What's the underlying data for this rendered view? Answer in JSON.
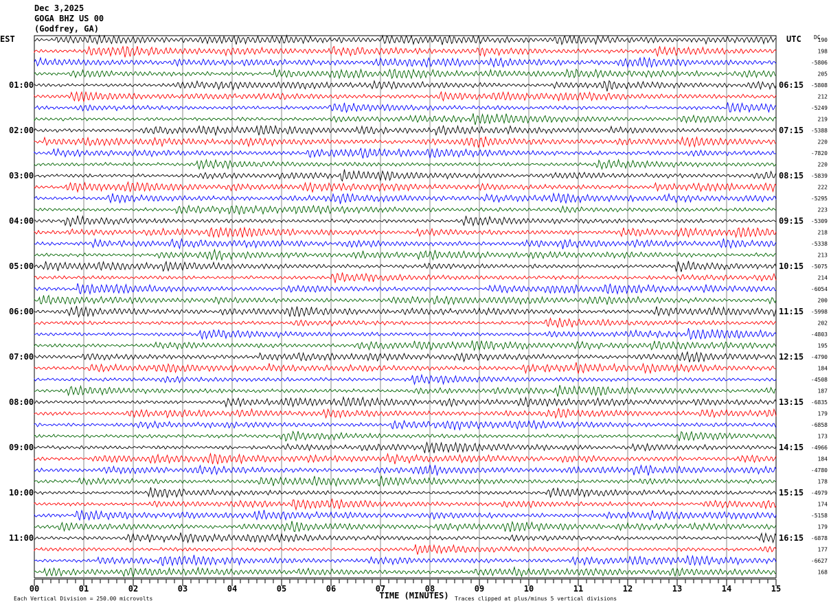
{
  "header": {
    "date": "Dec 3,2025",
    "station": "GOGA BHZ US 00",
    "location": "(Godfrey, GA)"
  },
  "chart_data": {
    "type": "helicorder",
    "left_timezone": "EST",
    "right_timezone": "UTC",
    "dc_header": "DC",
    "xlabel": "TIME (MINUTES)",
    "xlim": [
      0,
      15
    ],
    "x_ticks": [
      "00",
      "01",
      "02",
      "03",
      "04",
      "05",
      "06",
      "07",
      "08",
      "09",
      "10",
      "11",
      "12",
      "13",
      "14",
      "15"
    ],
    "trace_colors": [
      "#000000",
      "#ff0000",
      "#0000ff",
      "#006400"
    ],
    "traces_per_hour": 4,
    "trace_count": 48,
    "left_hour_labels": [
      "01:00",
      "02:00",
      "03:00",
      "04:00",
      "05:00",
      "06:00",
      "07:00",
      "08:00",
      "09:00",
      "10:00",
      "11:00"
    ],
    "right_hour_labels": [
      "06:15",
      "07:15",
      "08:15",
      "09:15",
      "10:15",
      "11:15",
      "12:15",
      "13:15",
      "14:15",
      "15:15",
      "16:15"
    ],
    "dc_offsets": [
      "190",
      "198",
      "-5806",
      "205",
      "-5808",
      "212",
      "-5249",
      "219",
      "-5388",
      "220",
      "-7820",
      "220",
      "-5839",
      "222",
      "-5295",
      "223",
      "-5309",
      "218",
      "-5338",
      "213",
      "-5075",
      "214",
      "-6054",
      "200",
      "-5998",
      "202",
      "-4803",
      "195",
      "-4790",
      "184",
      "-4508",
      "187",
      "-6835",
      "179",
      "-6858",
      "173",
      "-4966",
      "184",
      "-4780",
      "178",
      "-4979",
      "174",
      "-5158",
      "179",
      "-6878",
      "177",
      "-6627",
      "168"
    ],
    "vertical_division_note": "Each Vertical Division =  250.00 microvolts",
    "clip_note": "Traces clipped at plus/minus 5 vertical divisions"
  }
}
